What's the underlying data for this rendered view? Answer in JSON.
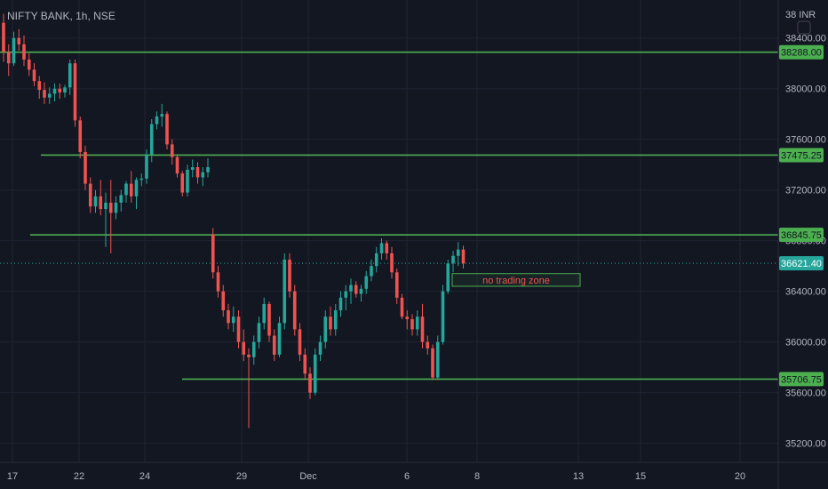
{
  "chart_data": {
    "type": "candlestick",
    "title": "NIFTY BANK, 1h, NSE",
    "currency": "INR",
    "y_unit_tick": "38 INR",
    "ylim": [
      35050,
      38700
    ],
    "y_ticks": [
      38400,
      38000,
      37600,
      37200,
      36800,
      36400,
      36000,
      35600,
      35200
    ],
    "y_tick_labels": [
      "38400.00",
      "38000.00",
      "37600.00",
      "37200.00",
      "36800.00",
      "36400.00",
      "36000.00",
      "35600.00",
      "35200.00"
    ],
    "x_ticks": [
      "17",
      "22",
      "24",
      "29",
      "Dec",
      "6",
      "8",
      "13",
      "15",
      "20"
    ],
    "last_price": {
      "value": 36621.4,
      "label": "36621.40",
      "color": "#26a69a"
    },
    "horizontal_levels": [
      {
        "value": 38288.0,
        "label": "38288.00",
        "color": "#4caf50"
      },
      {
        "value": 37475.25,
        "label": "37475.25",
        "color": "#4caf50"
      },
      {
        "value": 36845.75,
        "label": "36845.75",
        "color": "#4caf50"
      },
      {
        "value": 35706.75,
        "label": "35706.75",
        "color": "#4caf50"
      }
    ],
    "annotation": {
      "text": "no trading zone",
      "top": 36540,
      "bottom": 36440,
      "text_color": "#ef5350",
      "border_color": "#4caf50"
    },
    "colors": {
      "up": "#26a69a",
      "down": "#ef5350",
      "background": "#131722",
      "grid": "#1f2433"
    },
    "candles": [
      [
        38520,
        38590,
        38210,
        38290
      ],
      [
        38290,
        38350,
        38100,
        38200
      ],
      [
        38200,
        38450,
        38180,
        38400
      ],
      [
        38400,
        38470,
        38300,
        38350
      ],
      [
        38350,
        38420,
        38180,
        38230
      ],
      [
        38230,
        38280,
        38100,
        38150
      ],
      [
        38150,
        38200,
        38020,
        38060
      ],
      [
        38060,
        38100,
        37920,
        37990
      ],
      [
        37990,
        38050,
        37880,
        37930
      ],
      [
        37930,
        38010,
        37880,
        37960
      ],
      [
        37960,
        38040,
        37900,
        38000
      ],
      [
        38000,
        38040,
        37920,
        37970
      ],
      [
        37970,
        38030,
        37930,
        38010
      ],
      [
        38010,
        38230,
        37950,
        38200
      ],
      [
        38200,
        38230,
        37700,
        37750
      ],
      [
        37750,
        37780,
        37450,
        37500
      ],
      [
        37500,
        37550,
        37200,
        37250
      ],
      [
        37250,
        37300,
        37020,
        37070
      ],
      [
        37070,
        37200,
        37020,
        37150
      ],
      [
        37150,
        37280,
        37000,
        37050
      ],
      [
        37050,
        37180,
        36750,
        37100
      ],
      [
        37100,
        37280,
        36700,
        37020
      ],
      [
        37020,
        37150,
        36970,
        37100
      ],
      [
        37100,
        37200,
        37030,
        37160
      ],
      [
        37160,
        37270,
        37100,
        37250
      ],
      [
        37250,
        37350,
        37100,
        37150
      ],
      [
        37150,
        37300,
        37050,
        37280
      ],
      [
        37280,
        37330,
        37230,
        37290
      ],
      [
        37290,
        37520,
        37250,
        37480
      ],
      [
        37480,
        37760,
        37420,
        37720
      ],
      [
        37720,
        37820,
        37680,
        37780
      ],
      [
        37780,
        37880,
        37700,
        37800
      ],
      [
        37800,
        37820,
        37520,
        37560
      ],
      [
        37560,
        37600,
        37400,
        37460
      ],
      [
        37460,
        37480,
        37300,
        37330
      ],
      [
        37330,
        37350,
        37150,
        37180
      ],
      [
        37180,
        37400,
        37150,
        37360
      ],
      [
        37360,
        37440,
        37300,
        37380
      ],
      [
        37380,
        37420,
        37250,
        37300
      ],
      [
        37300,
        37380,
        37230,
        37340
      ],
      [
        37340,
        37450,
        37300,
        37380
      ],
      [
        36850,
        36900,
        36500,
        36550
      ],
      [
        36550,
        36600,
        36350,
        36400
      ],
      [
        36400,
        36450,
        36200,
        36250
      ],
      [
        36250,
        36300,
        36100,
        36150
      ],
      [
        36150,
        36280,
        36080,
        36200
      ],
      [
        36200,
        36250,
        35950,
        36000
      ],
      [
        36000,
        36100,
        35850,
        35900
      ],
      [
        35900,
        35950,
        35320,
        35880
      ],
      [
        35880,
        36050,
        35820,
        36000
      ],
      [
        36000,
        36200,
        35950,
        36150
      ],
      [
        36150,
        36350,
        36100,
        36300
      ],
      [
        36300,
        36320,
        36000,
        36050
      ],
      [
        36050,
        36100,
        35850,
        35900
      ],
      [
        35900,
        36200,
        35880,
        36150
      ],
      [
        36150,
        36700,
        36100,
        36650
      ],
      [
        36650,
        36700,
        36350,
        36400
      ],
      [
        36400,
        36450,
        36050,
        36100
      ],
      [
        36100,
        36150,
        35850,
        35900
      ],
      [
        35900,
        35950,
        35700,
        35750
      ],
      [
        35750,
        35800,
        35550,
        35600
      ],
      [
        35600,
        35950,
        35580,
        35900
      ],
      [
        35900,
        36050,
        35850,
        36000
      ],
      [
        36000,
        36250,
        35950,
        36200
      ],
      [
        36200,
        36280,
        36050,
        36100
      ],
      [
        36100,
        36300,
        36050,
        36250
      ],
      [
        36250,
        36400,
        36200,
        36350
      ],
      [
        36350,
        36450,
        36250,
        36400
      ],
      [
        36400,
        36500,
        36300,
        36450
      ],
      [
        36450,
        36480,
        36350,
        36380
      ],
      [
        36380,
        36450,
        36320,
        36420
      ],
      [
        36420,
        36560,
        36380,
        36520
      ],
      [
        36520,
        36650,
        36480,
        36600
      ],
      [
        36600,
        36750,
        36550,
        36700
      ],
      [
        36700,
        36820,
        36650,
        36780
      ],
      [
        36780,
        36800,
        36650,
        36700
      ],
      [
        36700,
        36750,
        36500,
        36550
      ],
      [
        36550,
        36580,
        36300,
        36350
      ],
      [
        36350,
        36380,
        36180,
        36200
      ],
      [
        36200,
        36250,
        36100,
        36180
      ],
      [
        36180,
        36220,
        36050,
        36100
      ],
      [
        36100,
        36250,
        36050,
        36200
      ],
      [
        36200,
        36300,
        35950,
        36000
      ],
      [
        36000,
        36050,
        35900,
        35950
      ],
      [
        35950,
        35980,
        35700,
        35720
      ],
      [
        35720,
        36050,
        35700,
        36000
      ],
      [
        36000,
        36450,
        35980,
        36400
      ],
      [
        36400,
        36650,
        36380,
        36620
      ],
      [
        36620,
        36720,
        36550,
        36680
      ],
      [
        36680,
        36790,
        36600,
        36730
      ],
      [
        36730,
        36760,
        36580,
        36620
      ]
    ]
  }
}
